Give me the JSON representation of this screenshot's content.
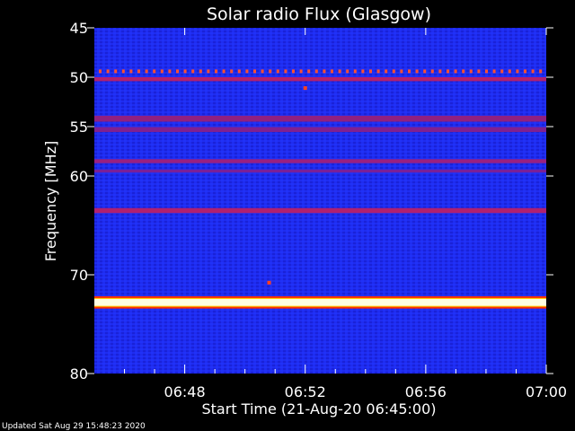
{
  "chart_data": {
    "type": "heatmap",
    "title": "Solar radio Flux (Glasgow)",
    "xlabel": "Start Time (21-Aug-20 06:45:00)",
    "ylabel": "Frequency [MHz]",
    "x_range_minutes": [
      0,
      15
    ],
    "xlim": [
      "06:45",
      "07:00"
    ],
    "ylim": [
      45,
      80
    ],
    "x_ticks": [
      {
        "minute": 3,
        "label": "06:48"
      },
      {
        "minute": 7,
        "label": "06:52"
      },
      {
        "minute": 11,
        "label": "06:56"
      },
      {
        "minute": 15,
        "label": "07:00"
      }
    ],
    "y_ticks": [
      {
        "value": 45,
        "label": "45"
      },
      {
        "value": 50,
        "label": "50"
      },
      {
        "value": 55,
        "label": "55"
      },
      {
        "value": 60,
        "label": "60"
      },
      {
        "value": 70,
        "label": "70"
      },
      {
        "value": 80,
        "label": "80"
      }
    ],
    "emission_bands": [
      {
        "freq_mhz": 49.4,
        "width_mhz": 0.3,
        "intensity": "pulsed",
        "color": "#ff5030"
      },
      {
        "freq_mhz": 50.2,
        "width_mhz": 0.4,
        "intensity": "medium",
        "color": "#b02070"
      },
      {
        "freq_mhz": 54.2,
        "width_mhz": 0.6,
        "intensity": "medium",
        "color": "#902080"
      },
      {
        "freq_mhz": 55.3,
        "width_mhz": 0.5,
        "intensity": "medium",
        "color": "#802090"
      },
      {
        "freq_mhz": 58.5,
        "width_mhz": 0.4,
        "intensity": "medium",
        "color": "#9a2080"
      },
      {
        "freq_mhz": 59.5,
        "width_mhz": 0.3,
        "intensity": "low",
        "color": "#7a2098"
      },
      {
        "freq_mhz": 63.5,
        "width_mhz": 0.5,
        "intensity": "medium",
        "color": "#b02070"
      },
      {
        "freq_mhz": 72.8,
        "width_mhz": 0.7,
        "intensity": "very-high",
        "color": "#ffffe0"
      }
    ],
    "bursts": [
      {
        "minute": 7.0,
        "freq_mhz": 51.1
      },
      {
        "minute": 5.8,
        "freq_mhz": 70.8
      }
    ],
    "background_color": "#1a22e8"
  },
  "footer": {
    "updated": "Updated Sat Aug 29 15:48:23 2020"
  }
}
